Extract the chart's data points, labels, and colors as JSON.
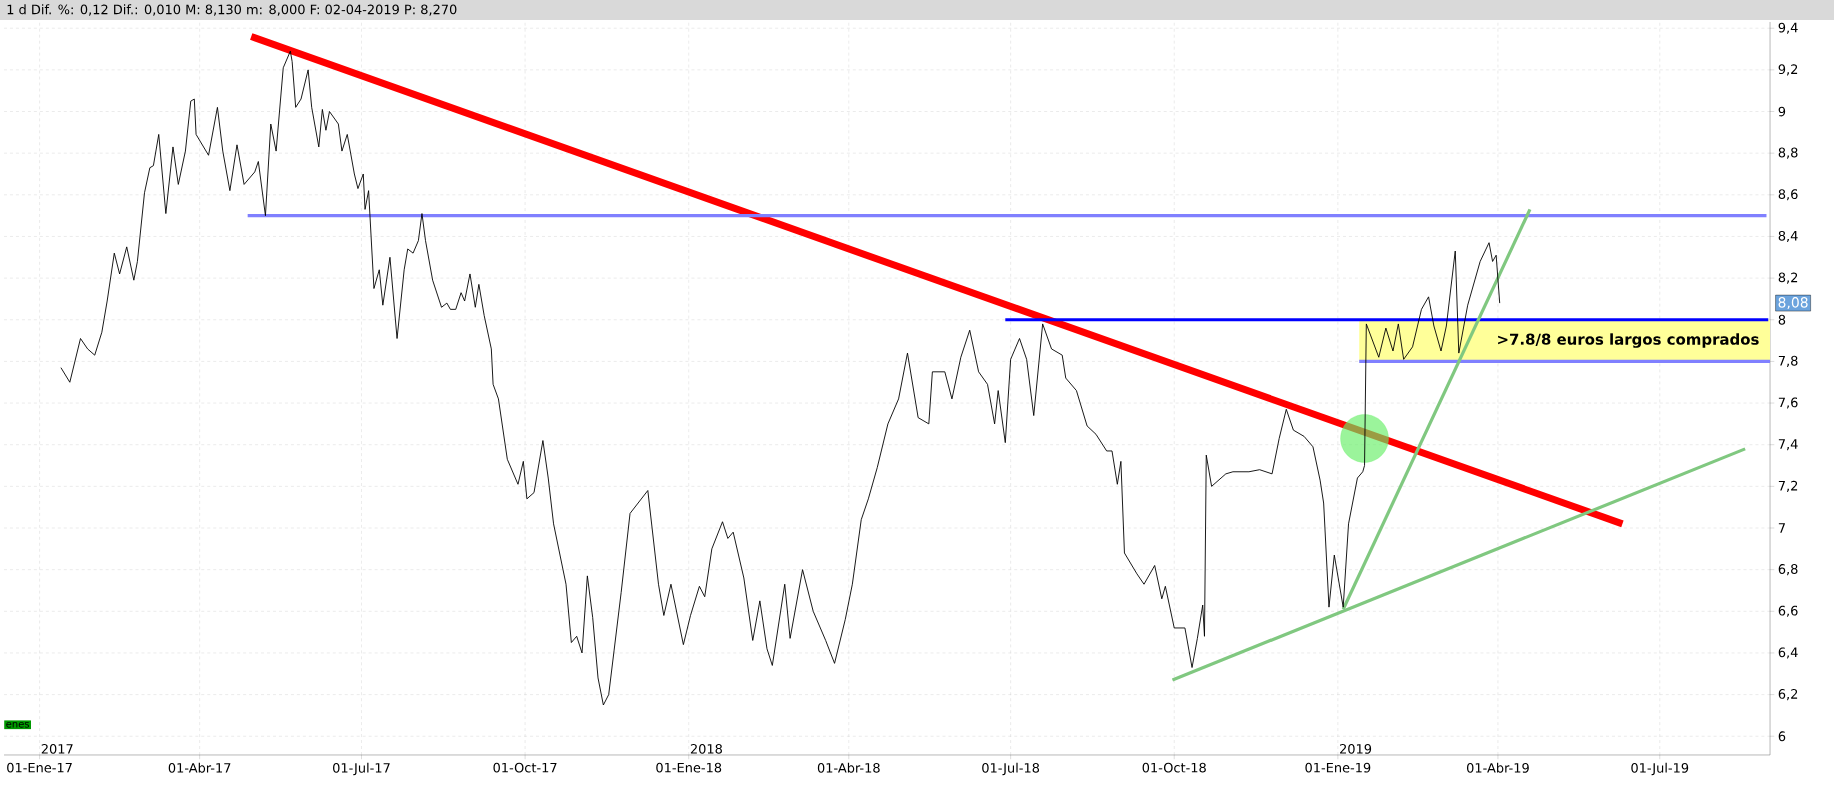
{
  "chart_data": {
    "type": "line",
    "title": "1 d Dif. %: 0,12 Dif.: 0,010 M: 8,130 m: 8,000 F: 02-04-2019 P: 8,270",
    "xlim": [
      "2016-12-12",
      "2019-09-01"
    ],
    "ylim": [
      5.91,
      9.43
    ],
    "xticks": [
      {
        "value": "2017-01-01",
        "label": "01-Ene-17"
      },
      {
        "value": "2017-04-01",
        "label": "01-Abr-17"
      },
      {
        "value": "2017-07-01",
        "label": "01-Jul-17"
      },
      {
        "value": "2017-10-01",
        "label": "01-Oct-17"
      },
      {
        "value": "2018-01-01",
        "label": "01-Ene-18"
      },
      {
        "value": "2018-04-01",
        "label": "01-Abr-18"
      },
      {
        "value": "2018-07-01",
        "label": "01-Jul-18"
      },
      {
        "value": "2018-10-01",
        "label": "01-Oct-18"
      },
      {
        "value": "2019-01-01",
        "label": "01-Ene-19"
      },
      {
        "value": "2019-04-01",
        "label": "01-Abr-19"
      },
      {
        "value": "2019-07-01",
        "label": "01-Jul-19"
      }
    ],
    "yticks": [
      6,
      {
        "value": 6.2,
        "label": "6,2"
      },
      {
        "value": 6.4,
        "label": "6,4"
      },
      {
        "value": 6.6,
        "label": "6,6"
      },
      {
        "value": 6.8,
        "label": "6,8"
      },
      7,
      {
        "value": 7.2,
        "label": "7,2"
      },
      {
        "value": 7.4,
        "label": "7,4"
      },
      {
        "value": 7.6,
        "label": "7,6"
      },
      {
        "value": 7.8,
        "label": "7,8"
      },
      8,
      {
        "value": 8.2,
        "label": "8,2"
      },
      {
        "value": 8.4,
        "label": "8,4"
      },
      {
        "value": 8.6,
        "label": "8,6"
      },
      {
        "value": 8.8,
        "label": "8,8"
      },
      9,
      {
        "value": 9.2,
        "label": "9,2"
      },
      {
        "value": 9.4,
        "label": "9,4"
      }
    ],
    "grid": true,
    "series": [
      {
        "type": "line",
        "color": "#ff0000",
        "x": [
          "2017-04-30",
          "2019-06-10"
        ],
        "values": [
          9.36,
          7.02
        ]
      },
      {
        "type": "line",
        "color": "#8080ff",
        "x": [
          "2017-04-28",
          "2019-08-30"
        ],
        "values": [
          8.5,
          8.5
        ]
      },
      {
        "type": "line",
        "color": "#0000ff",
        "x": [
          "2018-06-28",
          "2019-08-31"
        ],
        "values": [
          8.0,
          8.0
        ]
      },
      {
        "type": "line",
        "color": "#8080ff",
        "x": [
          "2019-01-13",
          "2019-09-01"
        ],
        "values": [
          7.8,
          7.8
        ]
      },
      {
        "type": "line",
        "color": "#80c880",
        "x": [
          "2019-01-04",
          "2019-04-19"
        ],
        "values": [
          6.61,
          8.53
        ]
      },
      {
        "type": "line",
        "color": "#80c880",
        "x": [
          "2018-09-30",
          "2019-08-18"
        ],
        "values": [
          6.27,
          7.38
        ]
      },
      {
        "type": "scatter",
        "marker": "circle",
        "color": "#66ee66",
        "x": [
          "2019-01-16"
        ],
        "values": [
          7.43
        ]
      },
      {
        "color": "#000000",
        "x": [
          "2017-01-13",
          "2017-01-18",
          "2017-01-24",
          "2017-01-28",
          "2017-02-01",
          "2017-02-05",
          "2017-02-08",
          "2017-02-12",
          "2017-02-15",
          "2017-02-19",
          "2017-02-23",
          "2017-02-25",
          "2017-03-01",
          "2017-03-04",
          "2017-03-06",
          "2017-03-09",
          "2017-03-13",
          "2017-03-17",
          "2017-03-20",
          "2017-03-24",
          "2017-03-27",
          "2017-03-29",
          "2017-03-30",
          "2017-04-06",
          "2017-04-11",
          "2017-04-14",
          "2017-04-18",
          "2017-04-22",
          "2017-04-26",
          "2017-05-02",
          "2017-05-04",
          "2017-05-08",
          "2017-05-11",
          "2017-05-14",
          "2017-05-18",
          "2017-05-22",
          "2017-05-23",
          "2017-05-25",
          "2017-05-28",
          "2017-06-01",
          "2017-06-03",
          "2017-06-07",
          "2017-06-09",
          "2017-06-11",
          "2017-06-13",
          "2017-06-18",
          "2017-06-20",
          "2017-06-23",
          "2017-06-27",
          "2017-06-29",
          "2017-07-02",
          "2017-07-03",
          "2017-07-05",
          "2017-07-08",
          "2017-07-11",
          "2017-07-13",
          "2017-07-17",
          "2017-07-21",
          "2017-07-25",
          "2017-07-27",
          "2017-07-30",
          "2017-08-02",
          "2017-08-04",
          "2017-08-06",
          "2017-08-10",
          "2017-08-15",
          "2017-08-18",
          "2017-08-20",
          "2017-08-23",
          "2017-08-26",
          "2017-08-28",
          "2017-08-31",
          "2017-09-03",
          "2017-09-05",
          "2017-09-08",
          "2017-09-12",
          "2017-09-13",
          "2017-09-16",
          "2017-09-21",
          "2017-09-27",
          "2017-09-30",
          "2017-10-02",
          "2017-10-06",
          "2017-10-11",
          "2017-10-14",
          "2017-10-17",
          "2017-10-24",
          "2017-10-27",
          "2017-10-30",
          "2017-11-02",
          "2017-11-05",
          "2017-11-08",
          "2017-11-11",
          "2017-11-14",
          "2017-11-17",
          "2017-11-20",
          "2017-11-24",
          "2017-11-29",
          "2017-12-09",
          "2017-12-15",
          "2017-12-18",
          "2017-12-22",
          "2017-12-29",
          "2018-01-02",
          "2018-01-07",
          "2018-01-10",
          "2018-01-14",
          "2018-01-20",
          "2018-01-23",
          "2018-01-26",
          "2018-02-01",
          "2018-02-06",
          "2018-02-10",
          "2018-02-14",
          "2018-02-17",
          "2018-02-24",
          "2018-02-27",
          "2018-03-06",
          "2018-03-12",
          "2018-03-19",
          "2018-03-24",
          "2018-03-30",
          "2018-04-03",
          "2018-04-08",
          "2018-04-12",
          "2018-04-17",
          "2018-04-23",
          "2018-04-29",
          "2018-05-04",
          "2018-05-10",
          "2018-05-16",
          "2018-05-18",
          "2018-05-25",
          "2018-05-29",
          "2018-06-03",
          "2018-06-08",
          "2018-06-13",
          "2018-06-18",
          "2018-06-22",
          "2018-06-24",
          "2018-06-28",
          "2018-07-01",
          "2018-07-06",
          "2018-07-10",
          "2018-07-14",
          "2018-07-19",
          "2018-07-24",
          "2018-07-30",
          "2018-08-01",
          "2018-08-07",
          "2018-08-13",
          "2018-08-18",
          "2018-08-24",
          "2018-08-27",
          "2018-08-30",
          "2018-09-01",
          "2018-09-03",
          "2018-09-10",
          "2018-09-14",
          "2018-09-20",
          "2018-09-24",
          "2018-09-26",
          "2018-10-01",
          "2018-10-07",
          "2018-10-11",
          "2018-10-14",
          "2018-10-17",
          "2018-10-18",
          "2018-10-19",
          "2018-10-22",
          "2018-10-30",
          "2018-11-03",
          "2018-11-12",
          "2018-11-18",
          "2018-11-25",
          "2018-11-29",
          "2018-12-03",
          "2018-12-07",
          "2018-12-13",
          "2018-12-18",
          "2018-12-22",
          "2018-12-24",
          "2018-12-27",
          "2018-12-30",
          "2019-01-04",
          "2019-01-07",
          "2019-01-12",
          "2019-01-15",
          "2019-01-16",
          "2019-01-17",
          "2019-01-24",
          "2019-01-28",
          "2019-02-01",
          "2019-02-04",
          "2019-02-07",
          "2019-02-12",
          "2019-02-17",
          "2019-02-21",
          "2019-02-24",
          "2019-02-28",
          "2019-03-03",
          "2019-03-08",
          "2019-03-10",
          "2019-03-15",
          "2019-03-22",
          "2019-03-27",
          "2019-03-29",
          "2019-03-31",
          "2019-04-02"
        ],
        "values": [
          7.77,
          7.7,
          7.91,
          7.86,
          7.83,
          7.94,
          8.09,
          8.32,
          8.22,
          8.35,
          8.19,
          8.28,
          8.61,
          8.73,
          8.74,
          8.89,
          8.51,
          8.83,
          8.65,
          8.81,
          9.05,
          9.06,
          8.89,
          8.79,
          9.02,
          8.81,
          8.62,
          8.84,
          8.65,
          8.71,
          8.76,
          8.5,
          8.94,
          8.81,
          9.21,
          9.29,
          9.24,
          9.02,
          9.06,
          9.2,
          9.02,
          8.83,
          9.01,
          8.91,
          9.0,
          8.94,
          8.81,
          8.89,
          8.7,
          8.63,
          8.7,
          8.53,
          8.62,
          8.15,
          8.24,
          8.07,
          8.3,
          7.91,
          8.24,
          8.34,
          8.32,
          8.38,
          8.51,
          8.38,
          8.19,
          8.06,
          8.08,
          8.05,
          8.05,
          8.13,
          8.09,
          8.22,
          8.06,
          8.17,
          8.02,
          7.86,
          7.69,
          7.62,
          7.33,
          7.21,
          7.32,
          7.14,
          7.17,
          7.42,
          7.24,
          7.02,
          6.73,
          6.45,
          6.48,
          6.4,
          6.77,
          6.57,
          6.28,
          6.15,
          6.2,
          6.41,
          6.69,
          7.07,
          7.18,
          6.73,
          6.58,
          6.73,
          6.44,
          6.58,
          6.72,
          6.67,
          6.9,
          7.03,
          6.95,
          6.98,
          6.76,
          6.46,
          6.65,
          6.42,
          6.34,
          6.73,
          6.47,
          6.8,
          6.6,
          6.46,
          6.35,
          6.56,
          6.73,
          7.04,
          7.14,
          7.29,
          7.5,
          7.62,
          7.84,
          7.53,
          7.5,
          7.75,
          7.75,
          7.62,
          7.82,
          7.95,
          7.75,
          7.69,
          7.5,
          7.66,
          7.41,
          7.81,
          7.91,
          7.81,
          7.54,
          7.98,
          7.86,
          7.83,
          7.72,
          7.66,
          7.49,
          7.45,
          7.37,
          7.37,
          7.21,
          7.32,
          6.88,
          6.78,
          6.73,
          6.82,
          6.66,
          6.72,
          6.52,
          6.52,
          6.33,
          6.47,
          6.63,
          6.48,
          7.35,
          7.2,
          7.26,
          7.27,
          7.27,
          7.28,
          7.26,
          7.43,
          7.57,
          7.47,
          7.44,
          7.39,
          7.23,
          7.12,
          6.62,
          6.87,
          6.62,
          7.02,
          7.24,
          7.27,
          7.3,
          7.98,
          7.82,
          7.96,
          7.85,
          7.98,
          7.81,
          7.87,
          8.05,
          8.11,
          7.97,
          7.85,
          7.97,
          8.33,
          7.84,
          8.07,
          8.28,
          8.37,
          8.28,
          8.31,
          8.08
        ]
      }
    ],
    "bands": [
      {
        "axis": "y",
        "from": 7.8,
        "to": 8.0,
        "color": "#ffff99",
        "label": ">7.8/8 euros largos comprados"
      }
    ],
    "annotations": [
      "8,08",
      "2017",
      "2018",
      "2019",
      "enes"
    ]
  }
}
